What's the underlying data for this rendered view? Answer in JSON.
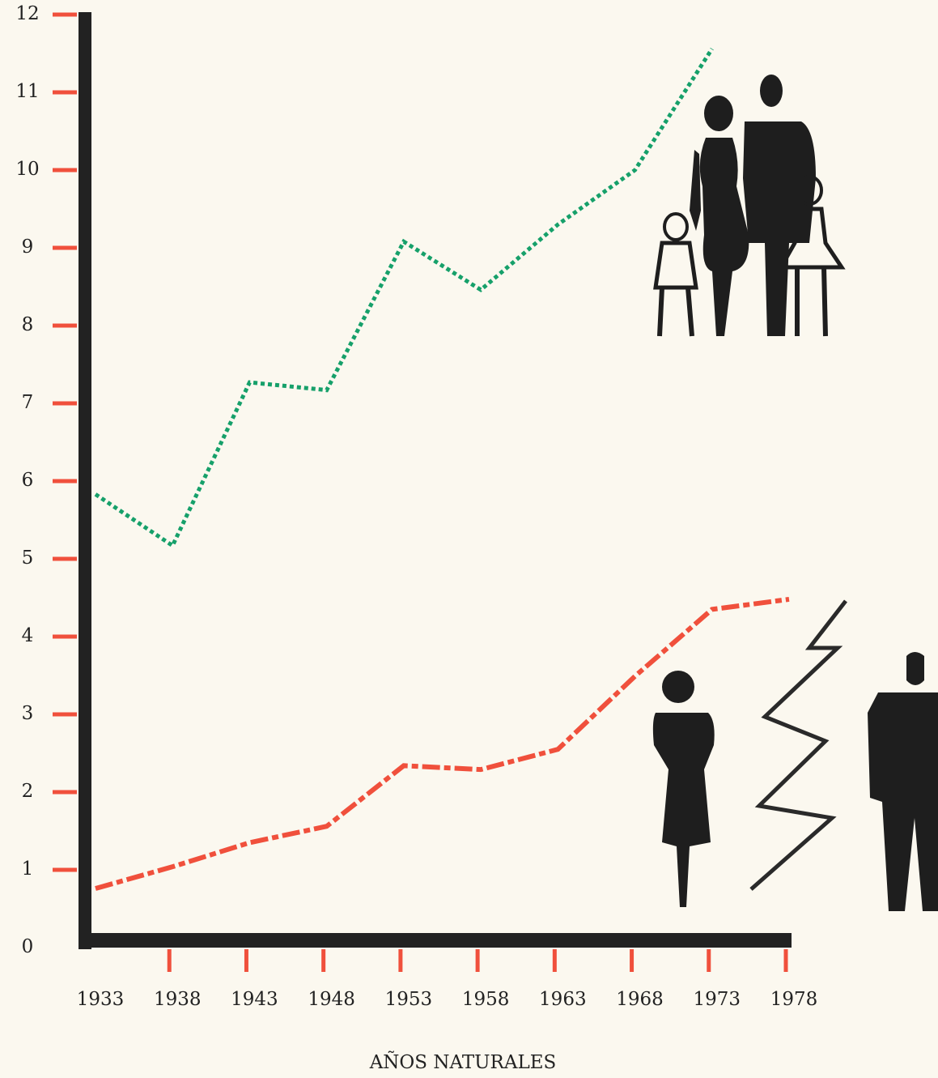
{
  "chart_data": {
    "type": "line",
    "x": [
      1933,
      1938,
      1943,
      1948,
      1953,
      1958,
      1963,
      1968,
      1973,
      1978
    ],
    "series": [
      {
        "color": "#16a06a",
        "dash": "dotted",
        "values": [
          5.83,
          5.17,
          7.27,
          7.17,
          9.08,
          8.46,
          9.3,
          10.0,
          11.56,
          null
        ]
      },
      {
        "color": "#f0503c",
        "dash": "dashed",
        "values": [
          0.76,
          1.04,
          1.35,
          1.56,
          2.34,
          2.29,
          2.55,
          3.49,
          4.35,
          4.48
        ]
      }
    ],
    "xlim": [
      1933,
      1978
    ],
    "xticks": [
      1933,
      1938,
      1943,
      1948,
      1953,
      1958,
      1963,
      1968,
      1973,
      1978
    ],
    "ylim": [
      0,
      12
    ],
    "yticks": [
      0,
      1,
      2,
      3,
      4,
      5,
      6,
      7,
      8,
      9,
      10,
      11,
      12
    ],
    "tick_color": "#f0503c",
    "xlabel": "AÑOS NATURALES"
  }
}
